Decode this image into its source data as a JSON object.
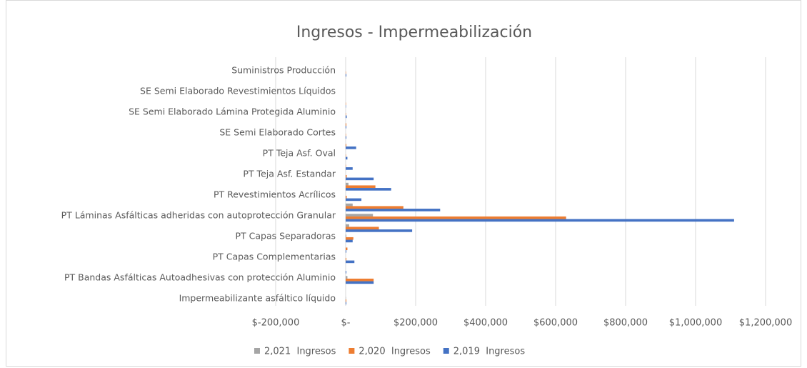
{
  "chart_data": {
    "type": "barh",
    "title": "Ingresos - Impermeabilización",
    "categories": [
      "Impermeabilizante asfáltico líquido",
      null,
      "PT Bandas Asfálticas Autoadhesivas con protección Aluminio",
      null,
      "PT Capas Complementarias",
      null,
      "PT Capas Separadoras",
      null,
      "PT Láminas Asfálticas adheridas con autoprotección Granular",
      null,
      "PT Revestimientos Acrílicos",
      null,
      "PT Teja Asf. Estandar",
      null,
      "PT Teja Asf. Oval",
      null,
      "SE Semi Elaborado Cortes",
      null,
      "SE Semi Elaborado Lámina Protegida Aluminio",
      null,
      "SE Semi Elaborado Revestimientos Líquidos",
      null,
      "Suministros Producción",
      null
    ],
    "series": [
      {
        "name": "2,021  Ingresos",
        "color": "#a5a5a5",
        "values": [
          1000,
          0,
          5000,
          0,
          0,
          0,
          2000,
          10000,
          78000,
          20000,
          0,
          8000,
          0,
          0,
          0,
          0,
          0,
          0,
          0,
          0,
          0,
          0,
          0,
          0
        ]
      },
      {
        "name": "2,020  Ingresos",
        "color": "#ed7d31",
        "values": [
          2000,
          0,
          80000,
          0,
          2000,
          5000,
          22000,
          95000,
          630000,
          165000,
          3000,
          85000,
          3000,
          1000,
          1000,
          2000,
          1000,
          2000,
          1000,
          1000,
          0,
          0,
          1000,
          0
        ]
      },
      {
        "name": "2,019  Ingresos",
        "color": "#4472c4",
        "values": [
          2000,
          0,
          80000,
          2000,
          25000,
          2000,
          20000,
          190000,
          1110000,
          270000,
          45000,
          130000,
          80000,
          20000,
          5000,
          30000,
          2000,
          2000,
          3000,
          1000,
          0,
          0,
          2000,
          0
        ]
      }
    ],
    "xlim": [
      -200000,
      1200000
    ],
    "xticks": [
      {
        "value": -200000,
        "label": "$-200,000"
      },
      {
        "value": 0,
        "label": "$-"
      },
      {
        "value": 200000,
        "label": "$200,000"
      },
      {
        "value": 400000,
        "label": "$400,000"
      },
      {
        "value": 600000,
        "label": "$600,000"
      },
      {
        "value": 800000,
        "label": "$800,000"
      },
      {
        "value": 1000000,
        "label": "$1,000,000"
      },
      {
        "value": 1200000,
        "label": "$1,200,000"
      }
    ],
    "grid": true,
    "legend": "bottom"
  }
}
